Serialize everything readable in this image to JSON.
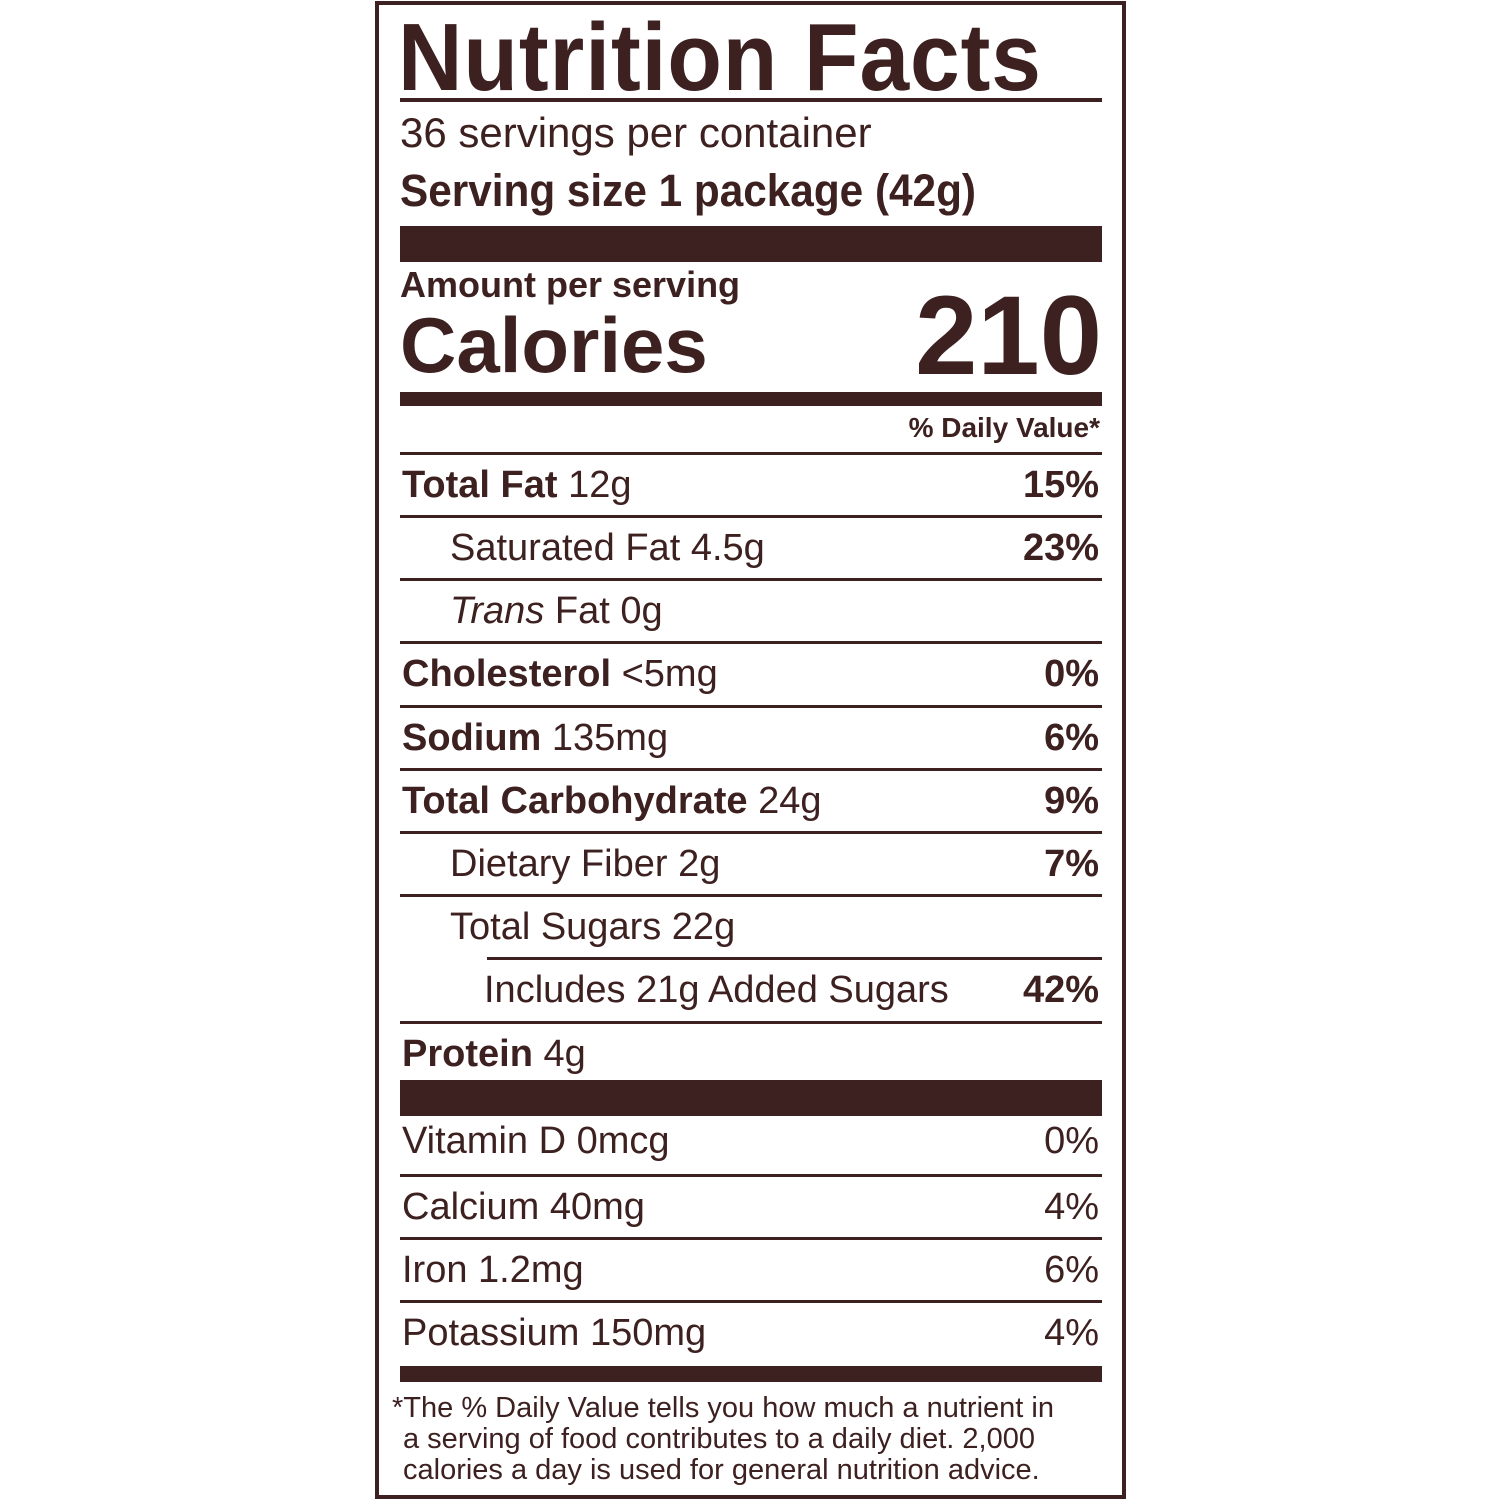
{
  "title": "Nutrition Facts",
  "servings_per_container": "36 servings per container",
  "serving_size": "Serving size 1 package (42g)",
  "amount_per_serving": "Amount per serving",
  "calories_label": "Calories",
  "calories_value": "210",
  "dv_header": "% Daily Value*",
  "nutrients": [
    {
      "name": "Total Fat",
      "amount": "12g",
      "dv": "15%",
      "bold": true
    },
    {
      "name": "Saturated Fat",
      "amount": "4.5g",
      "dv": "23%",
      "indent": 1
    },
    {
      "name_italic": "Trans",
      "name": "Fat",
      "amount": "0g",
      "dv": "",
      "indent": 1
    },
    {
      "name": "Cholesterol",
      "amount": "<5mg",
      "dv": "0%",
      "bold": true
    },
    {
      "name": "Sodium",
      "amount": "135mg",
      "dv": "6%",
      "bold": true
    },
    {
      "name": "Total Carbohydrate",
      "amount": "24g",
      "dv": "9%",
      "bold": true
    },
    {
      "name": "Dietary Fiber",
      "amount": "2g",
      "dv": "7%",
      "indent": 1
    },
    {
      "name": "Total Sugars",
      "amount": "22g",
      "dv": "",
      "indent": 1
    },
    {
      "name": "Includes 21g Added Sugars",
      "amount": "",
      "dv": "42%",
      "indent": 2
    },
    {
      "name": "Protein",
      "amount": "4g",
      "dv": "",
      "bold": true
    }
  ],
  "vitamins": [
    {
      "name": "Vitamin D",
      "amount": "0mcg",
      "dv": "0%"
    },
    {
      "name": "Calcium",
      "amount": "40mg",
      "dv": "4%"
    },
    {
      "name": "Iron",
      "amount": "1.2mg",
      "dv": "6%"
    },
    {
      "name": "Potassium",
      "amount": "150mg",
      "dv": "4%"
    }
  ],
  "footnote": [
    "*The % Daily Value tells you how much a nutrient in",
    "a serving of food contributes to a daily diet. 2,000",
    "calories a day is used for general nutrition advice."
  ],
  "colors": {
    "ink": "#3d2020",
    "background": "#ffffff"
  }
}
